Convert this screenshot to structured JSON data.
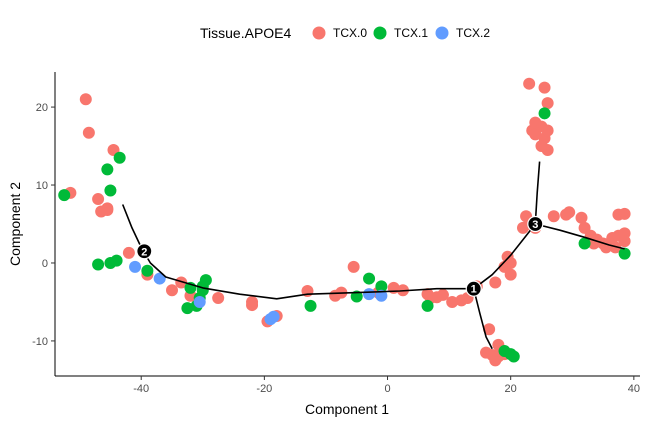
{
  "chart_data": {
    "type": "scatter",
    "xlabel": "Component 1",
    "ylabel": "Component 2",
    "xlim": [
      -54,
      41
    ],
    "ylim": [
      -14.5,
      24.5
    ],
    "x_ticks": [
      -40,
      -20,
      0,
      20,
      40
    ],
    "y_ticks": [
      -10,
      0,
      10,
      20
    ],
    "grid": false,
    "legend": {
      "title": "Tissue.APOE4",
      "position": "top",
      "entries": [
        {
          "label": "TCX.0",
          "color": "#F8766D"
        },
        {
          "label": "TCX.1",
          "color": "#00BA38"
        },
        {
          "label": "TCX.2",
          "color": "#619CFF"
        }
      ]
    },
    "series": [
      {
        "name": "TCX.0",
        "color": "#F8766D",
        "points": [
          [
            -49,
            21
          ],
          [
            -48.5,
            16.7
          ],
          [
            -44.5,
            14.5
          ],
          [
            -47,
            8.2
          ],
          [
            -45.5,
            7.0
          ],
          [
            -46.5,
            6.6
          ],
          [
            -45.5,
            6.8
          ],
          [
            -51.5,
            9.0
          ],
          [
            -42,
            1.3
          ],
          [
            -39,
            -1.5
          ],
          [
            -35,
            -3.5
          ],
          [
            -33.5,
            -2.5
          ],
          [
            -32,
            -4.2
          ],
          [
            -27.5,
            -4.5
          ],
          [
            -22,
            -5.0
          ],
          [
            -22,
            -5.4
          ],
          [
            -19.5,
            -7.5
          ],
          [
            -18,
            -6.8
          ],
          [
            -13,
            -3.6
          ],
          [
            -8.5,
            -4.2
          ],
          [
            -7.5,
            -3.8
          ],
          [
            -5.5,
            -0.5
          ],
          [
            -1.5,
            -3.8
          ],
          [
            1,
            -3.2
          ],
          [
            2.5,
            -3.5
          ],
          [
            6.5,
            -4.0
          ],
          [
            7,
            -4.5
          ],
          [
            8,
            -4.4
          ],
          [
            9,
            -4.1
          ],
          [
            10.5,
            -5.0
          ],
          [
            12,
            -4.8
          ],
          [
            13,
            -4.5
          ],
          [
            14.5,
            -3.0
          ],
          [
            14,
            -3.5
          ],
          [
            16.5,
            -8.5
          ],
          [
            16,
            -11.5
          ],
          [
            17,
            -11.8
          ],
          [
            17.5,
            -12.5
          ],
          [
            18,
            -10.5
          ],
          [
            18,
            -12.0
          ],
          [
            19,
            -11.7
          ],
          [
            18.5,
            -11.3
          ],
          [
            17.5,
            -2.5
          ],
          [
            19,
            -0.5
          ],
          [
            19.5,
            0.8
          ],
          [
            20,
            -1.5
          ],
          [
            20,
            0.0
          ],
          [
            22,
            4.5
          ],
          [
            22.5,
            6.0
          ],
          [
            23,
            5.0
          ],
          [
            24,
            4.5
          ],
          [
            23.5,
            17.0
          ],
          [
            24,
            16.5
          ],
          [
            25,
            17.5
          ],
          [
            25.5,
            16.0
          ],
          [
            26,
            14.5
          ],
          [
            26,
            17.0
          ],
          [
            25.5,
            22.5
          ],
          [
            26,
            20.5
          ],
          [
            24,
            18.0
          ],
          [
            23,
            23.0
          ],
          [
            25,
            15.0
          ],
          [
            27,
            6.0
          ],
          [
            29,
            6.2
          ],
          [
            29.5,
            6.5
          ],
          [
            31.5,
            5.8
          ],
          [
            32,
            4.5
          ],
          [
            33,
            3.5
          ],
          [
            33.5,
            2.5
          ],
          [
            34,
            3.0
          ],
          [
            35,
            2.5
          ],
          [
            35.5,
            2.0
          ],
          [
            36,
            2.5
          ],
          [
            36.5,
            3.2
          ],
          [
            37,
            2.0
          ],
          [
            37.5,
            3.5
          ],
          [
            37.5,
            6.2
          ],
          [
            38.5,
            6.3
          ],
          [
            38.5,
            3.8
          ],
          [
            38.5,
            2.8
          ]
        ]
      },
      {
        "name": "TCX.1",
        "color": "#00BA38",
        "points": [
          [
            -52.5,
            8.7
          ],
          [
            -45.5,
            12.0
          ],
          [
            -43.5,
            13.5
          ],
          [
            -45,
            9.3
          ],
          [
            -47,
            -0.2
          ],
          [
            -45,
            0.0
          ],
          [
            -44,
            0.3
          ],
          [
            -39,
            -1.0
          ],
          [
            -32,
            -3.2
          ],
          [
            -32.5,
            -5.8
          ],
          [
            -31,
            -5.5
          ],
          [
            -30.5,
            -4.5
          ],
          [
            -30,
            -3.0
          ],
          [
            -29.5,
            -2.2
          ],
          [
            -30,
            -3.5
          ],
          [
            -12.5,
            -5.5
          ],
          [
            -5,
            -4.3
          ],
          [
            -3,
            -2.0
          ],
          [
            -1,
            -3.0
          ],
          [
            6.5,
            -5.5
          ],
          [
            19,
            -11.3
          ],
          [
            20,
            -11.7
          ],
          [
            20.5,
            -12.0
          ],
          [
            25.5,
            19.2
          ],
          [
            32,
            2.5
          ],
          [
            38.5,
            1.2
          ]
        ]
      },
      {
        "name": "TCX.2",
        "color": "#619CFF",
        "points": [
          [
            -41,
            -0.5
          ],
          [
            -37,
            -2.0
          ],
          [
            -30.5,
            -5.0
          ],
          [
            -19,
            -7.2
          ],
          [
            -18.5,
            -6.9
          ],
          [
            -3,
            -4.0
          ],
          [
            -1,
            -4.2
          ]
        ]
      }
    ],
    "trajectory": [
      [
        [
          -43,
          7.5
        ],
        [
          -41.5,
          4.5
        ],
        [
          -40,
          2
        ],
        [
          -38.5,
          0
        ],
        [
          -36,
          -1.8
        ],
        [
          -30,
          -3.2
        ],
        [
          -24,
          -4.0
        ],
        [
          -18,
          -4.6
        ],
        [
          -13,
          -4.0
        ],
        [
          -5,
          -3.8
        ],
        [
          2,
          -3.6
        ],
        [
          8,
          -3.3
        ],
        [
          14,
          -3.3
        ],
        [
          17,
          -1.5
        ],
        [
          20,
          1.0
        ],
        [
          22.5,
          3.5
        ],
        [
          24,
          5
        ]
      ],
      [
        [
          14,
          -3.3
        ],
        [
          15,
          -6.5
        ],
        [
          16,
          -9.5
        ],
        [
          17,
          -11.0
        ]
      ],
      [
        [
          24,
          5
        ],
        [
          24.3,
          9
        ],
        [
          24.7,
          13
        ]
      ],
      [
        [
          24,
          5
        ],
        [
          28,
          4.2
        ],
        [
          32,
          3.3
        ],
        [
          36,
          2.3
        ],
        [
          38.5,
          1.8
        ]
      ]
    ],
    "branch_nodes": [
      {
        "label": "1",
        "x": 14,
        "y": -3.3
      },
      {
        "label": "2",
        "x": -39.5,
        "y": 1.5
      },
      {
        "label": "3",
        "x": 24,
        "y": 5
      }
    ]
  }
}
